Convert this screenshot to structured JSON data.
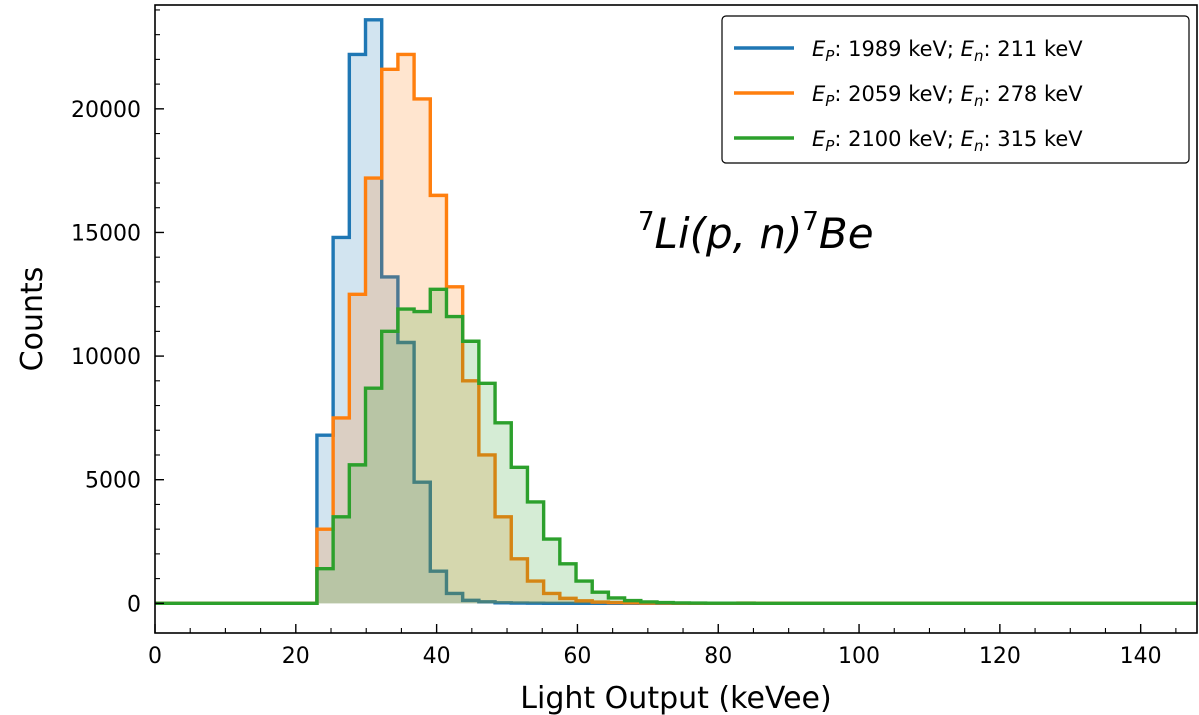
{
  "chart_data": {
    "type": "histogram",
    "xlabel": "Light Output (keVee)",
    "ylabel": "Counts",
    "xlim": [
      0,
      148
    ],
    "ylim": [
      -1200,
      24200
    ],
    "xticks": [
      0,
      20,
      40,
      60,
      80,
      100,
      120,
      140
    ],
    "xtick_labels": [
      "0",
      "20",
      "40",
      "60",
      "80",
      "100",
      "120",
      "140"
    ],
    "yticks": [
      0,
      5000,
      10000,
      15000,
      20000
    ],
    "ytick_labels": [
      "0",
      "5000",
      "10000",
      "15000",
      "20000"
    ],
    "grid": false,
    "legend_position": "top-right",
    "annotation": {
      "pre": "7",
      "a": "Li(p, n)",
      "sup": "7",
      "b": "Be"
    },
    "series": [
      {
        "label_parts": [
          "E",
          "P",
          ": 1989 keV; ",
          "E",
          "n",
          ": 211 keV"
        ],
        "color": "#1f77b4",
        "start": 23.0,
        "bin_width": 2.3,
        "counts": [
          6800,
          14800,
          22200,
          23600,
          13200,
          10550,
          4900,
          1300,
          400,
          120,
          60,
          20,
          10,
          5,
          0,
          0,
          0,
          0,
          0,
          0,
          0,
          0,
          0,
          0,
          0,
          0,
          0,
          0,
          0,
          0,
          0,
          0,
          0,
          0,
          0,
          0,
          0,
          0,
          0,
          0,
          0,
          0,
          0,
          0,
          0,
          0,
          0,
          0,
          0,
          0,
          0,
          0,
          0,
          0
        ]
      },
      {
        "label_parts": [
          "E",
          "P",
          ": 2059 keV; ",
          "E",
          "n",
          ": 278 keV"
        ],
        "color": "#ff7f0e",
        "start": 23.0,
        "bin_width": 2.3,
        "counts": [
          3000,
          7500,
          12500,
          17200,
          21600,
          22200,
          20400,
          16500,
          12800,
          9000,
          6000,
          3500,
          1800,
          900,
          400,
          200,
          100,
          50,
          30,
          20,
          10,
          10,
          5,
          5,
          5,
          5,
          10,
          5,
          5,
          0,
          0,
          0,
          0,
          0,
          0,
          0,
          0,
          0,
          0,
          0,
          0,
          0,
          0,
          0,
          0,
          0,
          0,
          0,
          0,
          0,
          0,
          0,
          0,
          0
        ]
      },
      {
        "label_parts": [
          "E",
          "P",
          ": 2100 keV; ",
          "E",
          "n",
          ": 315 keV"
        ],
        "color": "#2ca02c",
        "start": 23.0,
        "bin_width": 2.3,
        "counts": [
          1400,
          3500,
          5600,
          8700,
          11000,
          11900,
          11800,
          12700,
          11600,
          10600,
          8900,
          7300,
          5500,
          4100,
          2600,
          1600,
          900,
          450,
          220,
          110,
          55,
          30,
          15,
          10,
          5,
          5,
          5,
          0,
          0,
          0,
          0,
          0,
          0,
          0,
          0,
          0,
          0,
          0,
          0,
          0,
          0,
          0,
          0,
          0,
          0,
          0,
          0,
          0,
          0,
          0,
          0,
          0,
          0,
          0
        ]
      }
    ]
  }
}
